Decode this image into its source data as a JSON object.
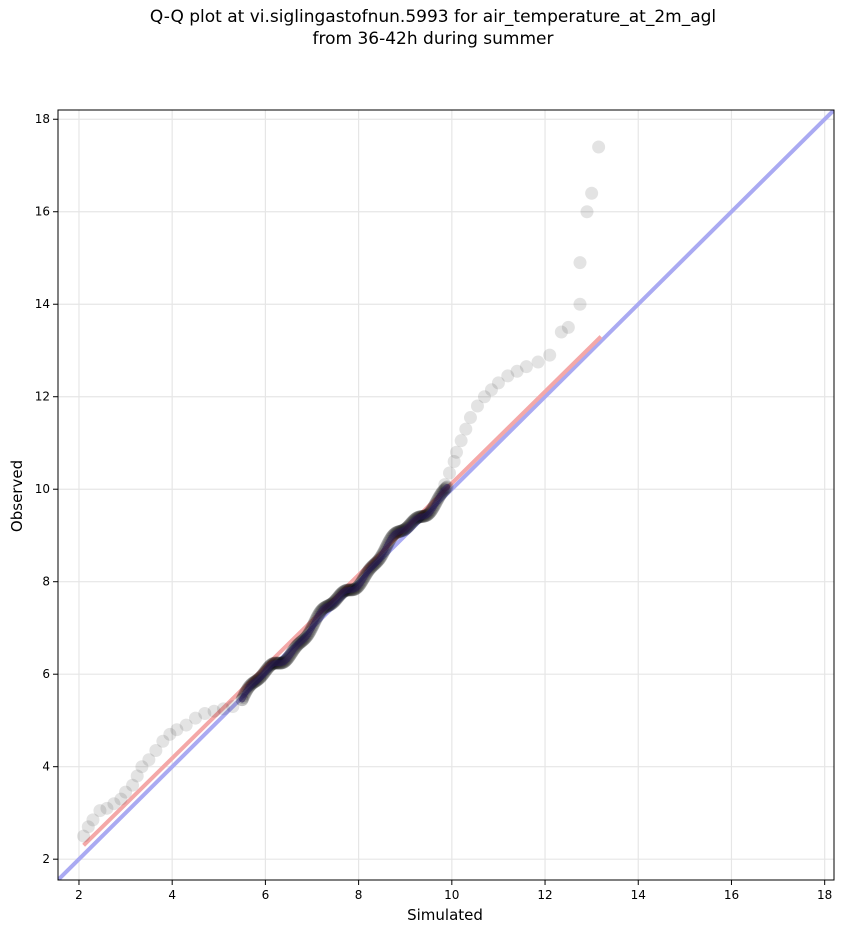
{
  "chart_data": {
    "type": "scatter",
    "title": "Q-Q plot at vi.siglingastofnun.5993 for air_temperature_at_2m_agl",
    "subtitle": "from 36-42h during summer",
    "xlabel": "Simulated",
    "ylabel": "Observed",
    "xlim": [
      1.55,
      18.2
    ],
    "ylim": [
      1.55,
      18.2
    ],
    "xticks": [
      2,
      4,
      6,
      8,
      10,
      12,
      14,
      16,
      18
    ],
    "yticks": [
      2,
      4,
      6,
      8,
      10,
      12,
      14,
      16,
      18
    ],
    "grid": true,
    "colors": {
      "points": "#000000",
      "identity_line": "#aaaaf2",
      "fit_line": "#f4a8a8",
      "central_overlay": "#2a1a5a"
    },
    "identity_line": {
      "from": [
        1.55,
        1.55
      ],
      "to": [
        18.2,
        18.2
      ]
    },
    "fit_line": {
      "from": [
        2.1,
        2.3
      ],
      "to": [
        13.2,
        13.3
      ]
    },
    "tail_points": [
      [
        2.1,
        2.5
      ],
      [
        2.2,
        2.7
      ],
      [
        2.3,
        2.85
      ],
      [
        2.45,
        3.05
      ],
      [
        2.6,
        3.1
      ],
      [
        2.75,
        3.2
      ],
      [
        2.9,
        3.3
      ],
      [
        3.0,
        3.45
      ],
      [
        3.15,
        3.6
      ],
      [
        3.25,
        3.8
      ],
      [
        3.35,
        4.0
      ],
      [
        3.5,
        4.15
      ],
      [
        3.65,
        4.35
      ],
      [
        3.8,
        4.55
      ],
      [
        3.95,
        4.7
      ],
      [
        4.1,
        4.8
      ],
      [
        4.3,
        4.9
      ],
      [
        4.5,
        5.05
      ],
      [
        4.7,
        5.15
      ],
      [
        4.9,
        5.2
      ],
      [
        5.1,
        5.25
      ],
      [
        5.3,
        5.3
      ],
      [
        5.5,
        5.45
      ],
      [
        9.85,
        10.1
      ],
      [
        9.95,
        10.35
      ],
      [
        10.05,
        10.6
      ],
      [
        10.1,
        10.8
      ],
      [
        10.2,
        11.05
      ],
      [
        10.3,
        11.3
      ],
      [
        10.4,
        11.55
      ],
      [
        10.55,
        11.8
      ],
      [
        10.7,
        12.0
      ],
      [
        10.85,
        12.15
      ],
      [
        11.0,
        12.3
      ],
      [
        11.2,
        12.45
      ],
      [
        11.4,
        12.55
      ],
      [
        11.6,
        12.65
      ],
      [
        11.85,
        12.75
      ],
      [
        12.1,
        12.9
      ],
      [
        12.35,
        13.4
      ],
      [
        12.5,
        13.5
      ],
      [
        12.75,
        14.0
      ],
      [
        12.75,
        14.9
      ],
      [
        12.9,
        16.0
      ],
      [
        13.0,
        16.4
      ],
      [
        13.15,
        17.4
      ]
    ],
    "central_band": {
      "x_range": [
        5.5,
        9.9
      ],
      "y_range": [
        5.45,
        10.05
      ],
      "approx_points": 220
    }
  }
}
